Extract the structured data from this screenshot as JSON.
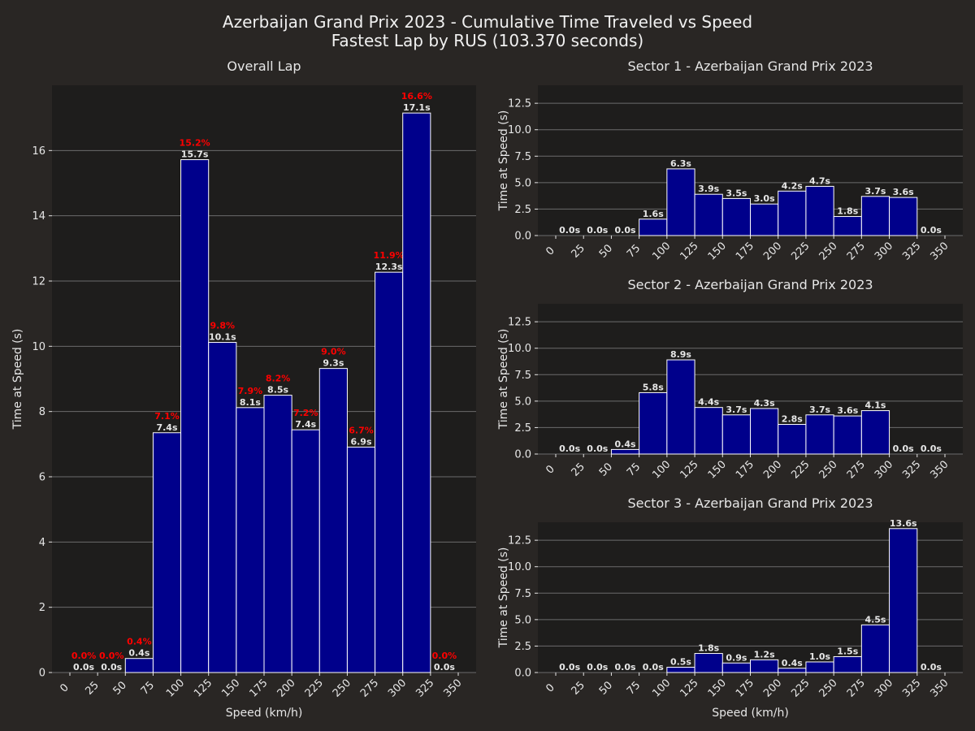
{
  "figure": {
    "title_line1": "Azerbaijan Grand Prix 2023 - Cumulative Time Traveled vs Speed",
    "title_line2": "Fastest Lap by RUS (103.370 seconds)"
  },
  "colors": {
    "background": "#292624",
    "plot_area": "#1e1d1c",
    "bar_fill": "#00008b",
    "bar_edge": "#ffffff",
    "text": "#e6e6e6",
    "percent_label": "#ff0000",
    "grid": "#6b6b6b"
  },
  "chart_data": [
    {
      "type": "bar",
      "title": "Overall Lap",
      "xlabel": "Speed (km/h)",
      "ylabel": "Time at Speed (s)",
      "bin_edges": [
        0,
        25,
        50,
        75,
        100,
        125,
        150,
        175,
        200,
        225,
        250,
        275,
        300,
        325,
        350
      ],
      "x_ticks": [
        "0",
        "25",
        "50",
        "75",
        "100",
        "125",
        "150",
        "175",
        "200",
        "225",
        "250",
        "275",
        "300",
        "325",
        "350"
      ],
      "values": [
        0.0,
        0.0,
        0.43,
        7.35,
        15.72,
        10.12,
        8.12,
        8.5,
        7.44,
        9.32,
        6.91,
        12.27,
        17.15,
        0.0
      ],
      "value_labels": [
        "0.0s",
        "0.0s",
        "0.4s",
        "7.4s",
        "15.7s",
        "10.1s",
        "8.1s",
        "8.5s",
        "7.4s",
        "9.3s",
        "6.9s",
        "12.3s",
        "17.1s",
        "0.0s"
      ],
      "percent_labels": [
        "0.0%",
        "0.0%",
        "0.4%",
        "7.1%",
        "15.2%",
        "9.8%",
        "7.9%",
        "8.2%",
        "7.2%",
        "9.0%",
        "6.7%",
        "11.9%",
        "16.6%",
        "0.0%"
      ],
      "y_ticks": [
        "0",
        "2",
        "4",
        "6",
        "8",
        "10",
        "12",
        "14",
        "16"
      ],
      "ylim": [
        0,
        18
      ],
      "grid": true
    },
    {
      "type": "bar",
      "title": "Sector 1 - Azerbaijan Grand Prix 2023",
      "xlabel": "",
      "ylabel": "Time at Speed (s)",
      "bin_edges": [
        0,
        25,
        50,
        75,
        100,
        125,
        150,
        175,
        200,
        225,
        250,
        275,
        300,
        325,
        350
      ],
      "x_ticks": [
        "0",
        "25",
        "50",
        "75",
        "100",
        "125",
        "150",
        "175",
        "200",
        "225",
        "250",
        "275",
        "300",
        "325",
        "350"
      ],
      "values": [
        0.0,
        0.0,
        0.0,
        1.55,
        6.3,
        3.9,
        3.5,
        2.98,
        4.2,
        4.65,
        1.8,
        3.7,
        3.6,
        0.0
      ],
      "value_labels": [
        "0.0s",
        "0.0s",
        "0.0s",
        "1.6s",
        "6.3s",
        "3.9s",
        "3.5s",
        "3.0s",
        "4.2s",
        "4.7s",
        "1.8s",
        "3.7s",
        "3.6s",
        "0.0s"
      ],
      "y_ticks": [
        "0.0",
        "2.5",
        "5.0",
        "7.5",
        "10.0",
        "12.5"
      ],
      "ylim": [
        0,
        14.2
      ],
      "grid": true
    },
    {
      "type": "bar",
      "title": "Sector 2 - Azerbaijan Grand Prix 2023",
      "xlabel": "",
      "ylabel": "Time at Speed (s)",
      "bin_edges": [
        0,
        25,
        50,
        75,
        100,
        125,
        150,
        175,
        200,
        225,
        250,
        275,
        300,
        325,
        350
      ],
      "x_ticks": [
        "0",
        "25",
        "50",
        "75",
        "100",
        "125",
        "150",
        "175",
        "200",
        "225",
        "250",
        "275",
        "300",
        "325",
        "350"
      ],
      "values": [
        0.0,
        0.0,
        0.43,
        5.8,
        8.9,
        4.4,
        3.7,
        4.3,
        2.8,
        3.7,
        3.6,
        4.1,
        0.0,
        0.0
      ],
      "value_labels": [
        "0.0s",
        "0.0s",
        "0.4s",
        "5.8s",
        "8.9s",
        "4.4s",
        "3.7s",
        "4.3s",
        "2.8s",
        "3.7s",
        "3.6s",
        "4.1s",
        "0.0s",
        "0.0s"
      ],
      "y_ticks": [
        "0.0",
        "2.5",
        "5.0",
        "7.5",
        "10.0",
        "12.5"
      ],
      "ylim": [
        0,
        14.2
      ],
      "grid": true
    },
    {
      "type": "bar",
      "title": "Sector 3 - Azerbaijan Grand Prix 2023",
      "xlabel": "Speed (km/h)",
      "ylabel": "Time at Speed (s)",
      "bin_edges": [
        0,
        25,
        50,
        75,
        100,
        125,
        150,
        175,
        200,
        225,
        250,
        275,
        300,
        325,
        350
      ],
      "x_ticks": [
        "0",
        "25",
        "50",
        "75",
        "100",
        "125",
        "150",
        "175",
        "200",
        "225",
        "250",
        "275",
        "300",
        "325",
        "350"
      ],
      "values": [
        0.0,
        0.0,
        0.0,
        0.0,
        0.5,
        1.8,
        0.9,
        1.2,
        0.4,
        1.0,
        1.5,
        4.5,
        13.6,
        0.0
      ],
      "value_labels": [
        "0.0s",
        "0.0s",
        "0.0s",
        "0.0s",
        "0.5s",
        "1.8s",
        "0.9s",
        "1.2s",
        "0.4s",
        "1.0s",
        "1.5s",
        "4.5s",
        "13.6s",
        "0.0s"
      ],
      "y_ticks": [
        "0.0",
        "2.5",
        "5.0",
        "7.5",
        "10.0",
        "12.5"
      ],
      "ylim": [
        0,
        14.2
      ],
      "grid": true
    }
  ]
}
